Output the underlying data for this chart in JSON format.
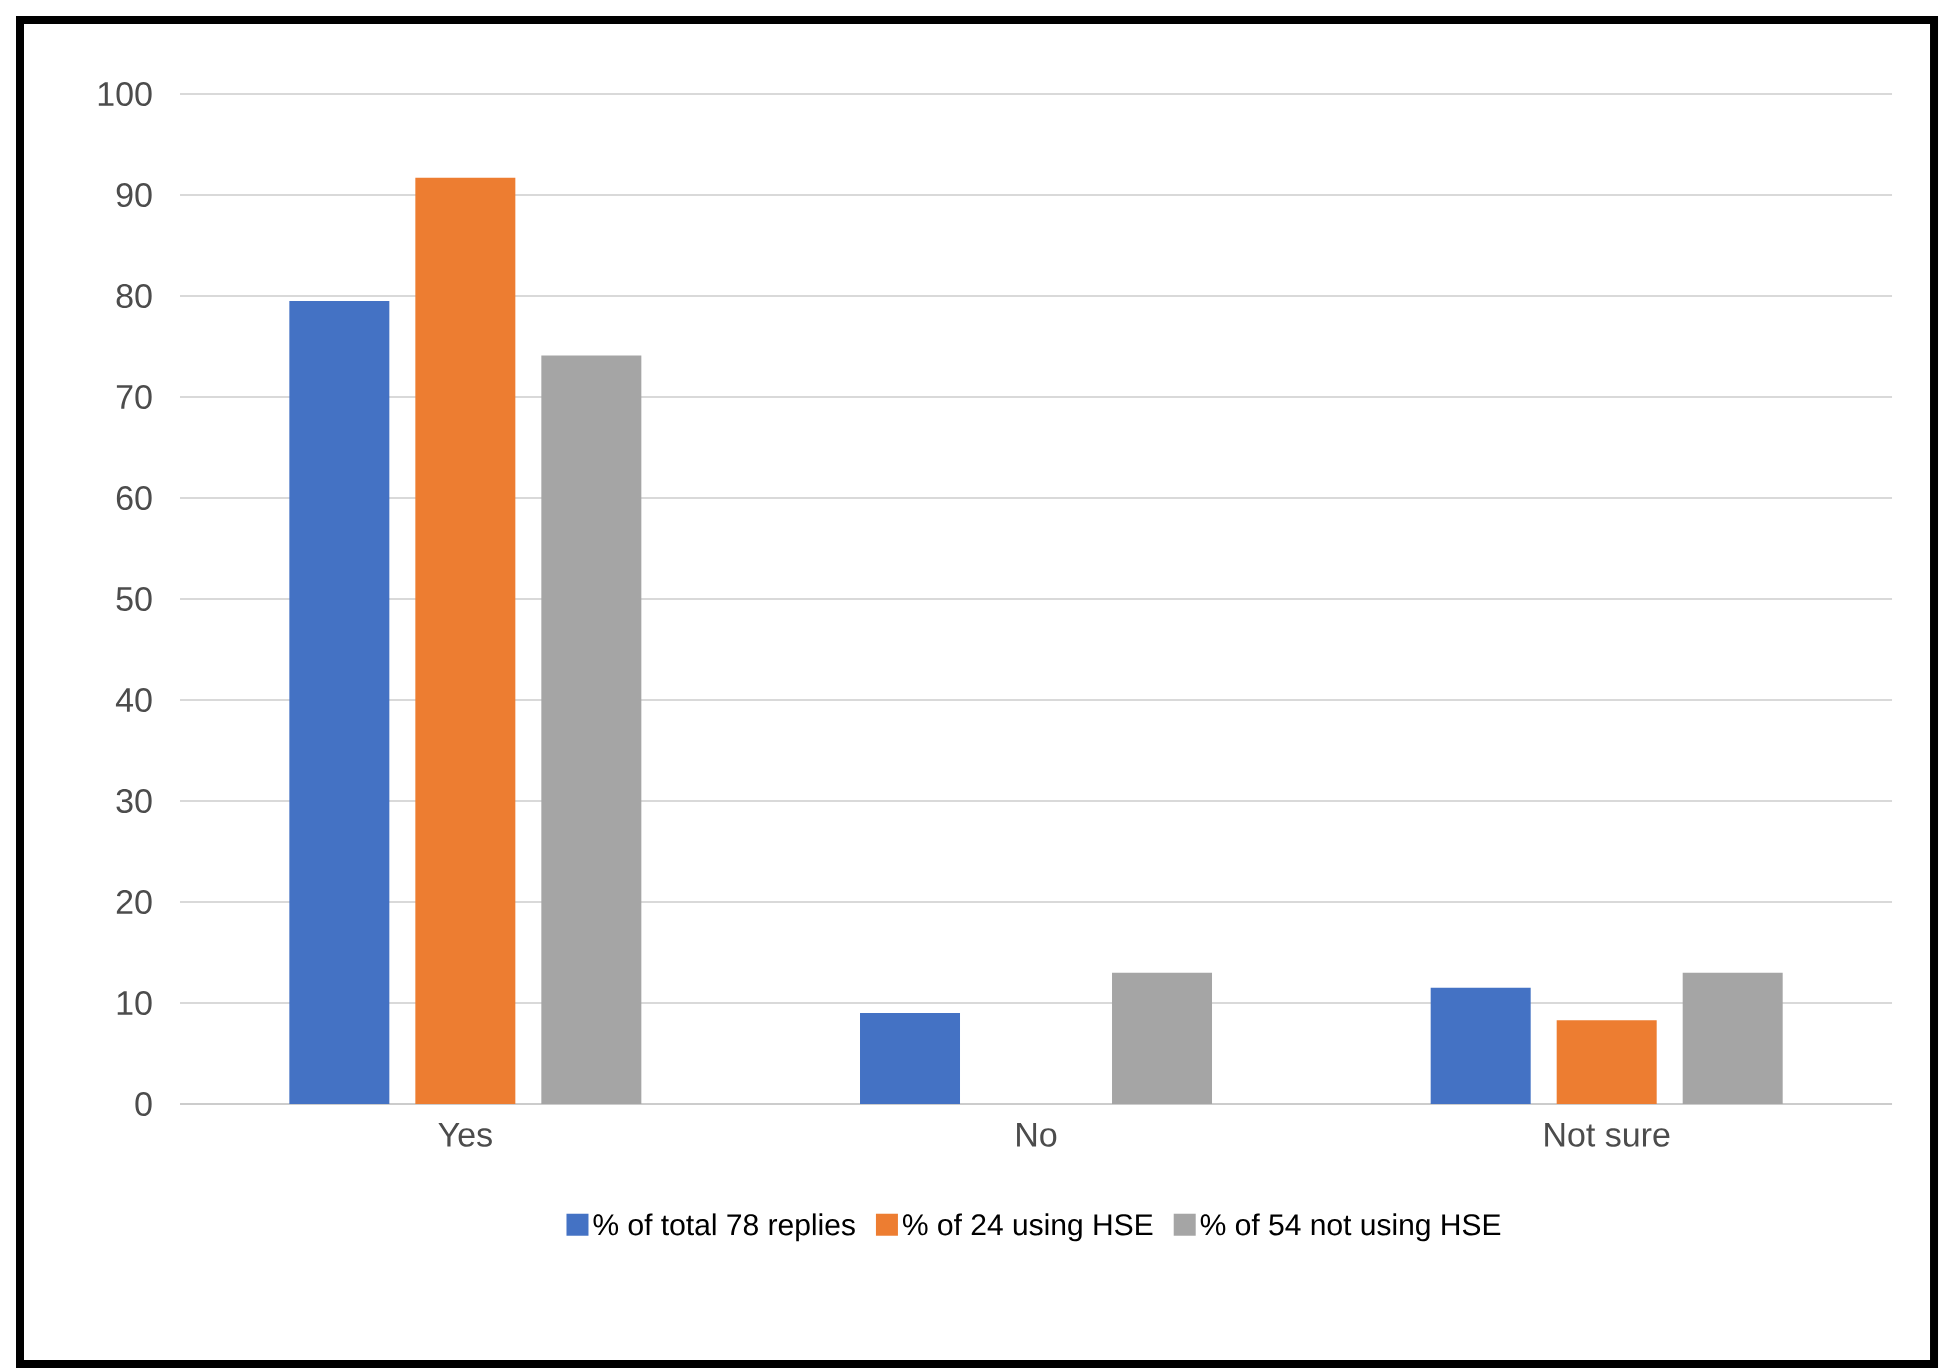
{
  "chart_data": {
    "type": "bar",
    "categories": [
      "Yes",
      "No",
      "Not sure"
    ],
    "series": [
      {
        "name": "% of total 78 replies",
        "color": "#4472c4",
        "values": [
          79.5,
          9,
          11.5
        ]
      },
      {
        "name": "% of 24 using HSE",
        "color": "#ed7d31",
        "values": [
          91.7,
          0,
          8.3
        ]
      },
      {
        "name": "% of 54 not using HSE",
        "color": "#a5a5a5",
        "values": [
          74.1,
          13,
          13
        ]
      }
    ],
    "ylim": [
      0,
      100
    ],
    "yticks": [
      0,
      10,
      20,
      30,
      40,
      50,
      60,
      70,
      80,
      90,
      100
    ],
    "grid": "y",
    "legend": "bottom"
  }
}
